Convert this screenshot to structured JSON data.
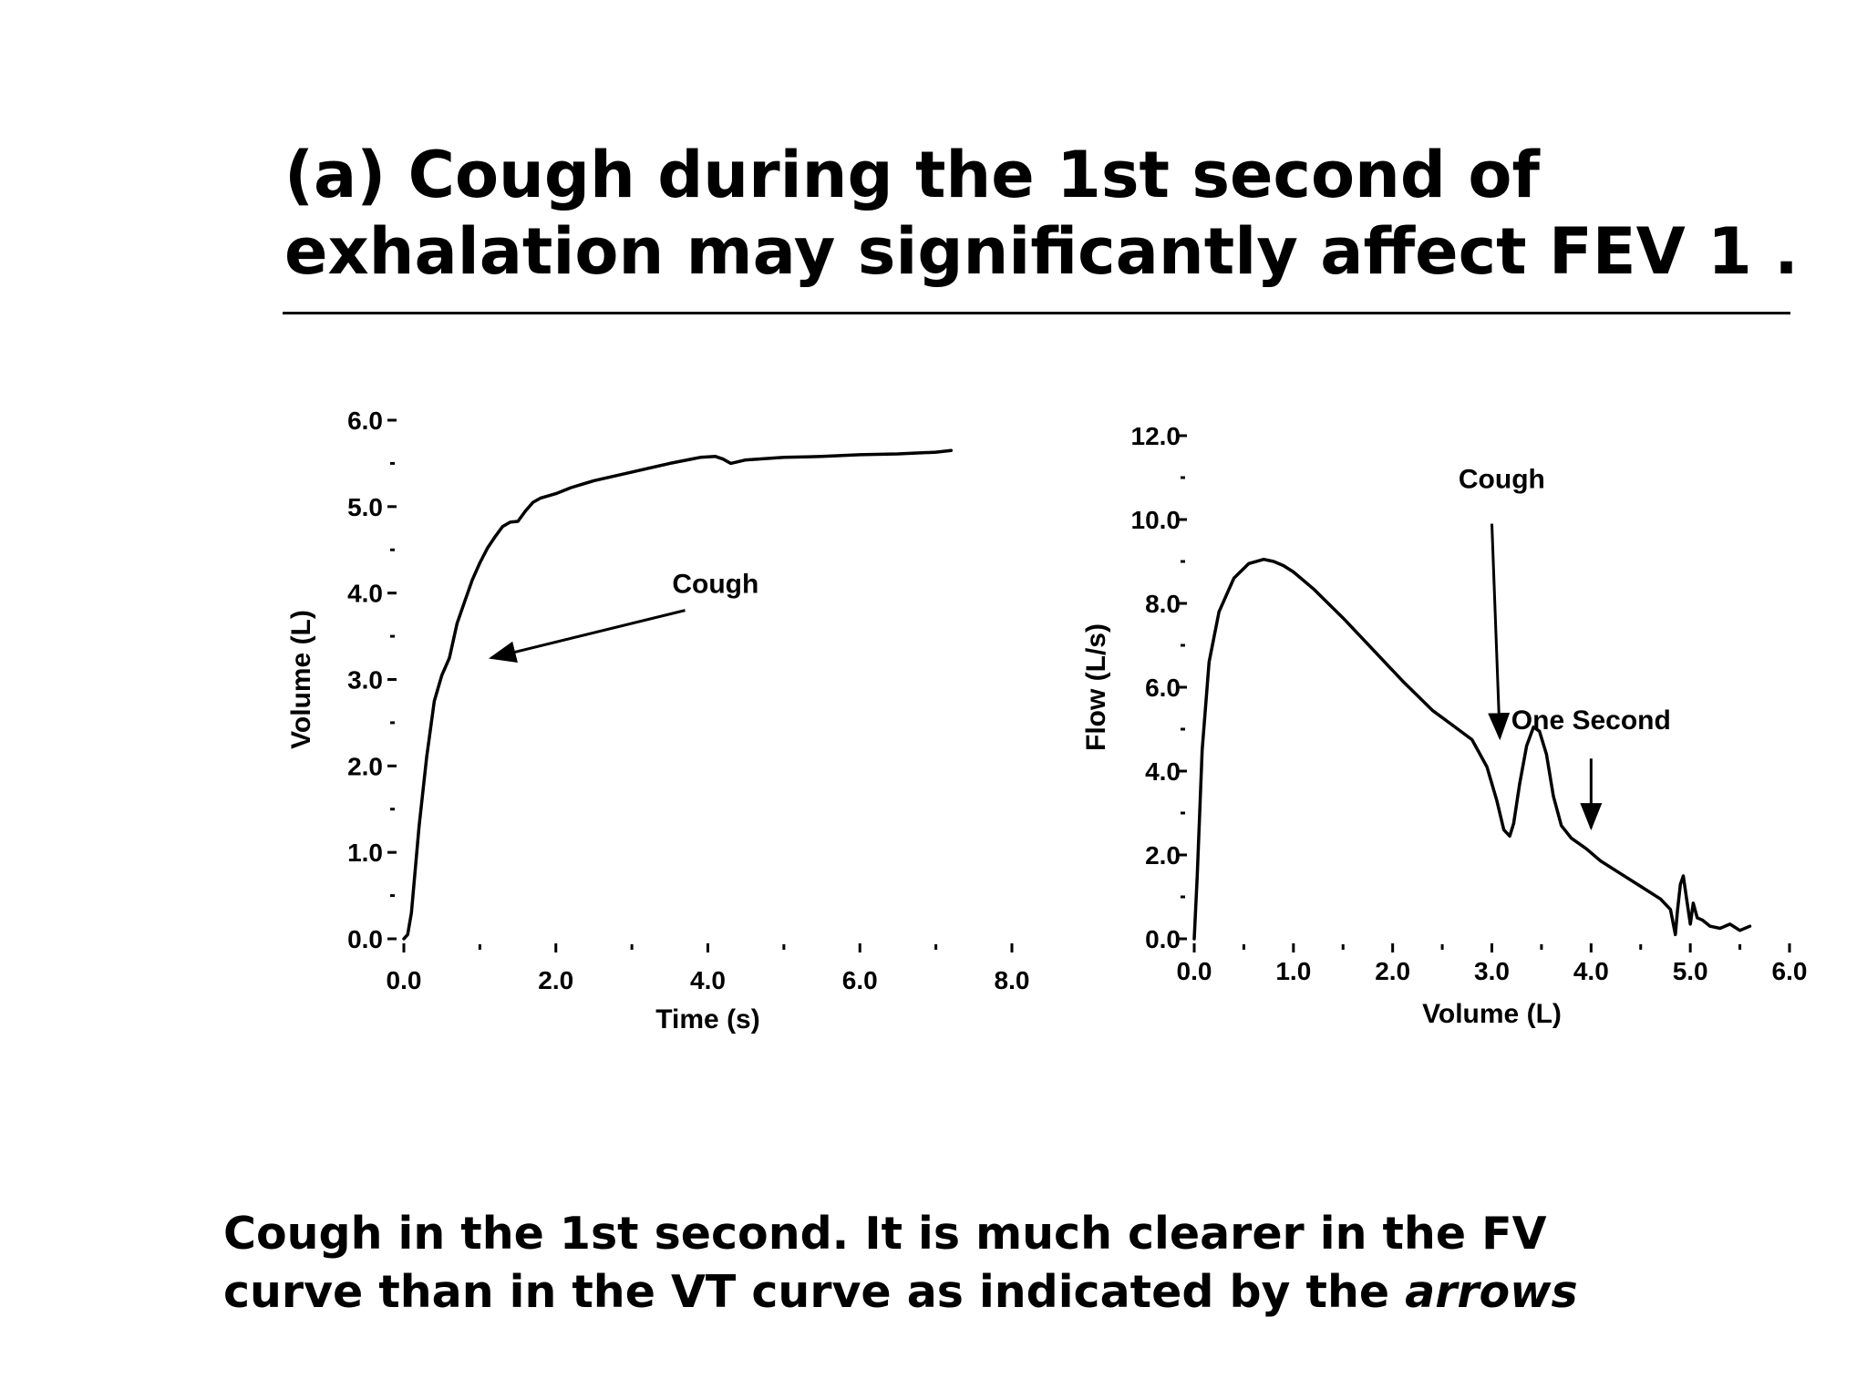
{
  "slide": {
    "title_line1": "(a) Cough during the 1st second of",
    "title_line2": "exhalation may significantly affect FEV 1 .",
    "caption_line1": "Cough in the 1st second. It is much clearer in the FV",
    "caption_line2_pre": "curve than in the VT curve as indicated by the ",
    "caption_line2_em": "arrows"
  },
  "chart_data": [
    {
      "type": "line",
      "name": "volume-time",
      "xlabel": "Time (s)",
      "ylabel": "Volume (L)",
      "xlim": [
        0,
        8
      ],
      "ylim": [
        0,
        6
      ],
      "x_ticks": [
        "0.0",
        "2.0",
        "4.0",
        "6.0",
        "8.0"
      ],
      "y_ticks": [
        "0.0",
        "1.0",
        "2.0",
        "3.0",
        "4.0",
        "5.0",
        "6.0"
      ],
      "grid": false,
      "series": [
        {
          "x": [
            0.0,
            0.05,
            0.1,
            0.15,
            0.2,
            0.3,
            0.4,
            0.5,
            0.6,
            0.7,
            0.8,
            0.9,
            1.0,
            1.1,
            1.2,
            1.3,
            1.4,
            1.5,
            1.6,
            1.7,
            1.8,
            2.0,
            2.2,
            2.5,
            3.0,
            3.5,
            3.9,
            4.1,
            4.2,
            4.3,
            4.5,
            5.0,
            5.5,
            6.0,
            6.5,
            7.0,
            7.2
          ],
          "y": [
            0.0,
            0.05,
            0.3,
            0.8,
            1.3,
            2.1,
            2.75,
            3.05,
            3.25,
            3.65,
            3.9,
            4.15,
            4.35,
            4.52,
            4.65,
            4.77,
            4.82,
            4.83,
            4.95,
            5.05,
            5.1,
            5.15,
            5.22,
            5.3,
            5.4,
            5.5,
            5.57,
            5.58,
            5.55,
            5.5,
            5.54,
            5.57,
            5.58,
            5.6,
            5.61,
            5.63,
            5.65
          ]
        }
      ],
      "annotations": [
        {
          "text": "Cough",
          "x": 4.1,
          "y": 4.0,
          "arrow_from": [
            3.7,
            3.8
          ],
          "arrow_to": [
            1.15,
            3.25
          ]
        }
      ]
    },
    {
      "type": "line",
      "name": "flow-volume",
      "xlabel": "Volume (L)",
      "ylabel": "Flow (L/s)",
      "xlim": [
        0,
        6
      ],
      "ylim": [
        0,
        12
      ],
      "x_ticks": [
        "0.0",
        "1.0",
        "2.0",
        "3.0",
        "4.0",
        "5.0",
        "6.0"
      ],
      "y_ticks": [
        "0.0",
        "2.0",
        "4.0",
        "6.0",
        "8.0",
        "10.0",
        "12.0"
      ],
      "grid": false,
      "series": [
        {
          "x": [
            0.0,
            0.03,
            0.08,
            0.15,
            0.25,
            0.4,
            0.55,
            0.7,
            0.8,
            0.9,
            1.0,
            1.2,
            1.5,
            1.8,
            2.1,
            2.4,
            2.6,
            2.8,
            2.95,
            3.05,
            3.12,
            3.18,
            3.22,
            3.28,
            3.35,
            3.42,
            3.48,
            3.55,
            3.62,
            3.7,
            3.8,
            3.95,
            4.1,
            4.3,
            4.5,
            4.7,
            4.8,
            4.85,
            4.87,
            4.9,
            4.93,
            4.96,
            5.0,
            5.03,
            5.07,
            5.12,
            5.2,
            5.3,
            5.4,
            5.5,
            5.6
          ],
          "y": [
            0.0,
            1.5,
            4.5,
            6.6,
            7.8,
            8.6,
            8.95,
            9.05,
            9.0,
            8.9,
            8.75,
            8.35,
            7.65,
            6.9,
            6.15,
            5.45,
            5.1,
            4.75,
            4.1,
            3.3,
            2.6,
            2.45,
            2.75,
            3.7,
            4.6,
            5.05,
            4.95,
            4.4,
            3.4,
            2.7,
            2.4,
            2.15,
            1.85,
            1.55,
            1.25,
            0.95,
            0.7,
            0.1,
            0.65,
            1.3,
            1.5,
            1.0,
            0.35,
            0.85,
            0.5,
            0.45,
            0.3,
            0.25,
            0.35,
            0.2,
            0.3
          ]
        }
      ],
      "annotations": [
        {
          "text": "Cough",
          "x": 3.1,
          "y": 10.75,
          "arrow_from": [
            3.0,
            9.9
          ],
          "arrow_to": [
            3.08,
            4.8
          ]
        },
        {
          "text": "One Second",
          "x": 4.0,
          "y": 5.0,
          "arrow_from": [
            4.0,
            4.3
          ],
          "arrow_to": [
            4.0,
            2.65
          ]
        }
      ]
    }
  ]
}
